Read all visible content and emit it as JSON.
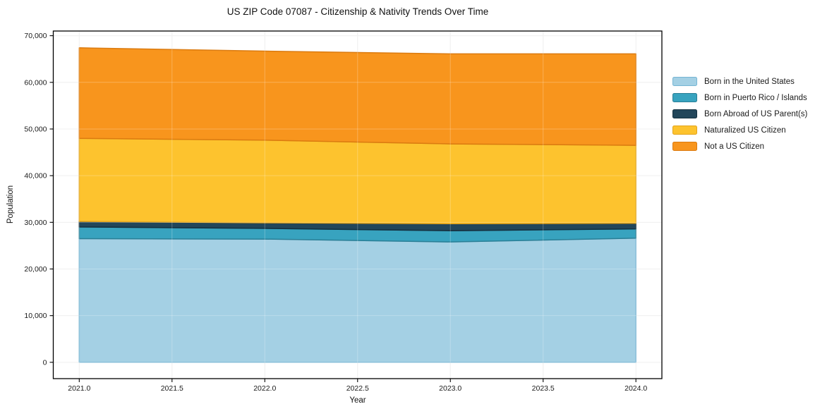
{
  "chart_data": {
    "type": "area",
    "stacked": true,
    "title": "US ZIP Code 07087 - Citizenship & Nativity Trends Over Time",
    "xlabel": "Year",
    "ylabel": "Population",
    "x": [
      2021,
      2022,
      2023,
      2024
    ],
    "series": [
      {
        "name": "Born in the United States",
        "color": "#a4d0e4",
        "edge": "#76b5d3",
        "values": [
          26500,
          26400,
          25800,
          26600
        ]
      },
      {
        "name": "Born in Puerto Rico / Islands",
        "color": "#38a3bf",
        "edge": "#2a7f96",
        "values": [
          2500,
          2300,
          2400,
          2000
        ]
      },
      {
        "name": "Born Abroad of US Parent(s)",
        "color": "#22465a",
        "edge": "#142f3e",
        "values": [
          1200,
          1200,
          1500,
          1200
        ]
      },
      {
        "name": "Naturalized US Citizen",
        "color": "#fdc32e",
        "edge": "#e3a41a",
        "values": [
          17800,
          17700,
          17100,
          16700
        ]
      },
      {
        "name": "Not a US Citizen",
        "color": "#f8951d",
        "edge": "#db7b10",
        "values": [
          19400,
          19100,
          19300,
          19600
        ]
      }
    ],
    "totals": [
      67400,
      66700,
      66100,
      66100
    ],
    "xlim": [
      2020.86,
      2024.14
    ],
    "ylim": [
      -3500,
      71000
    ],
    "xtick_values": [
      2021.0,
      2021.5,
      2022.0,
      2022.5,
      2023.0,
      2023.5,
      2024.0
    ],
    "xtick_labels": [
      "2021.0",
      "2021.5",
      "2022.0",
      "2022.5",
      "2023.0",
      "2023.5",
      "2024.0"
    ],
    "ytick_values": [
      0,
      10000,
      20000,
      30000,
      40000,
      50000,
      60000,
      70000
    ],
    "ytick_labels": [
      "0",
      "10,000",
      "20,000",
      "30,000",
      "40,000",
      "50,000",
      "60,000",
      "70,000"
    ],
    "grid": true,
    "legend_position": "right-outside"
  }
}
